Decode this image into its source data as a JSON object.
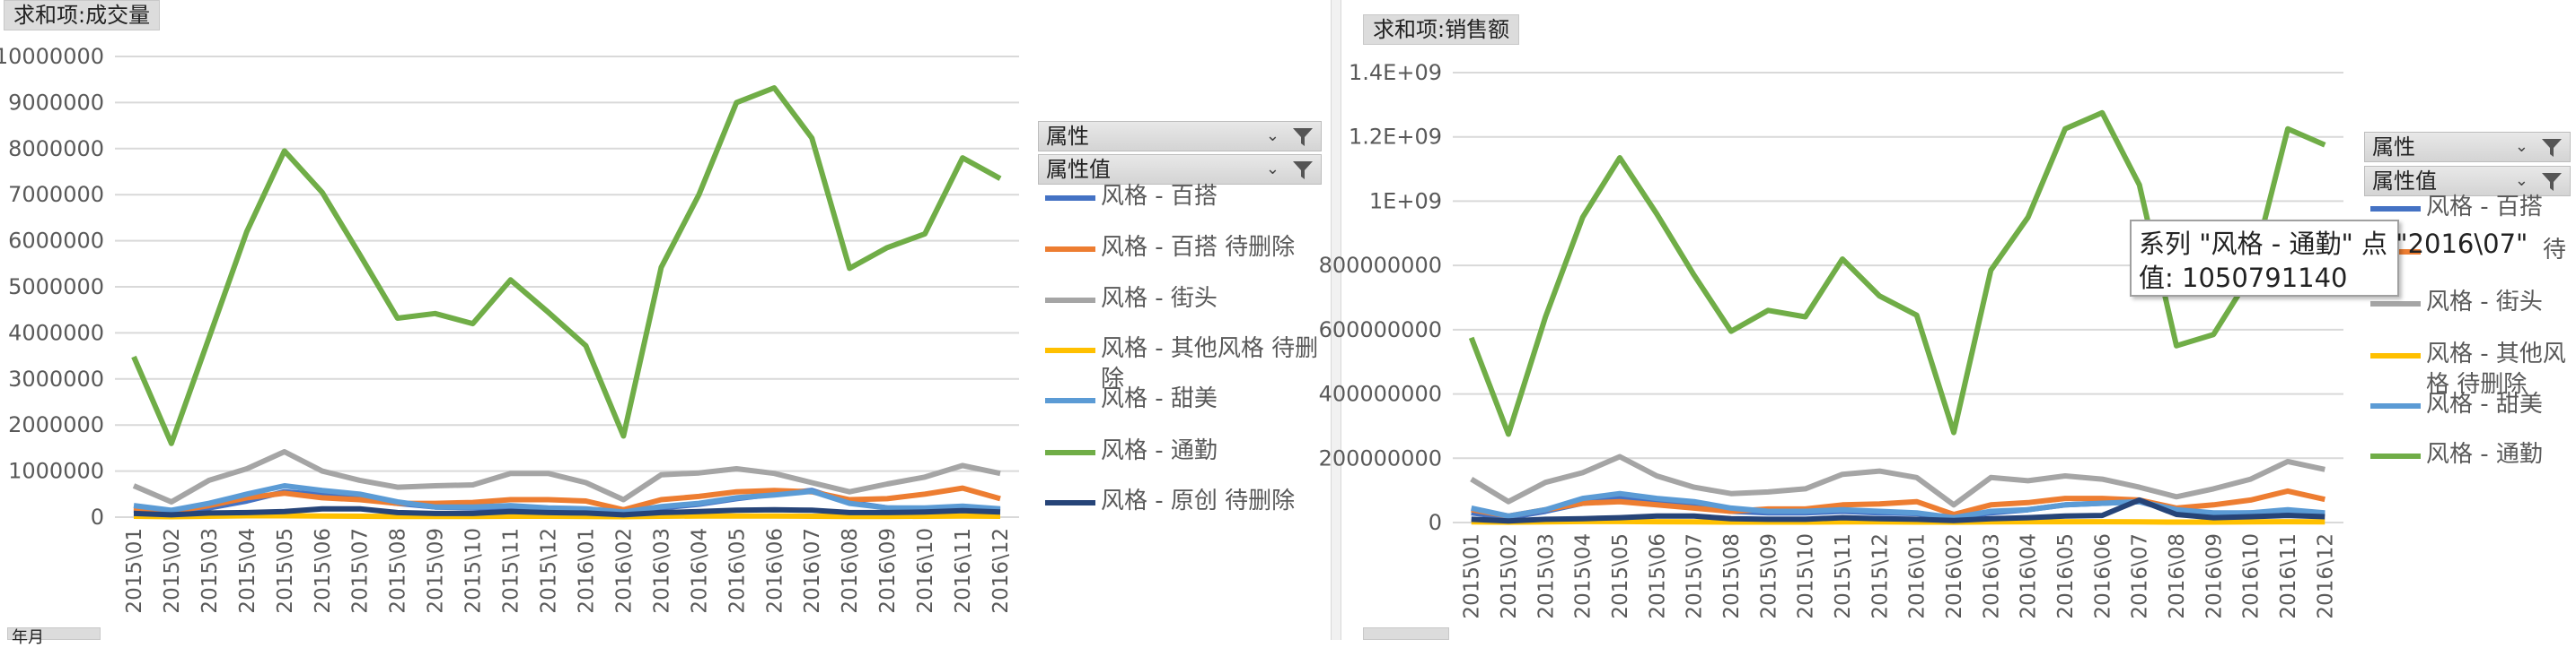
{
  "colors": {
    "百搭": "#4472c4",
    "百搭待删除": "#ed7d31",
    "街头": "#a5a5a5",
    "其他风格待删除": "#ffc000",
    "甜美": "#5b9bd5",
    "通勤": "#70ad47",
    "原创待删除": "#264478"
  },
  "categories": [
    "2015\\01",
    "2015\\02",
    "2015\\03",
    "2015\\04",
    "2015\\05",
    "2015\\06",
    "2015\\07",
    "2015\\08",
    "2015\\09",
    "2015\\10",
    "2015\\11",
    "2015\\12",
    "2016\\01",
    "2016\\02",
    "2016\\03",
    "2016\\04",
    "2016\\05",
    "2016\\06",
    "2016\\07",
    "2016\\08",
    "2016\\09",
    "2016\\10",
    "2016\\11",
    "2016\\12"
  ],
  "left": {
    "field_button": "求和项:成交量",
    "filter1": "属性",
    "filter2": "属性值",
    "legend": [
      "风格 - 百搭",
      "风格 - 百搭 待删除",
      "风格 - 街头",
      "风格 - 其他风格 待删",
      "除",
      "风格 - 甜美",
      "风格 - 通勤",
      "风格 - 原创 待删除"
    ],
    "bottom_tab": "年月"
  },
  "right": {
    "field_button": "求和项:销售额",
    "filter1": "属性",
    "filter2": "属性值",
    "legend": [
      "风格 - 百搭",
      "待",
      "风格 - 街头",
      "风格 - 其他风",
      "格 待删除",
      "风格 - 甜美",
      "风格 - 通勤"
    ],
    "tooltip_line1": "系列 \"风格 - 通勤\" 点 \"2016\\07\"",
    "tooltip_line2": "值: 1050791140"
  },
  "chart_data": [
    {
      "type": "line",
      "title": "",
      "ylim": [
        0,
        10000000
      ],
      "yticks": [
        "0",
        "1000000",
        "2000000",
        "3000000",
        "4000000",
        "5000000",
        "6000000",
        "7000000",
        "8000000",
        "9000000",
        "10000000"
      ],
      "grid": true,
      "legend_position": "right",
      "series": [
        {
          "name": "风格 - 百搭",
          "color_key": "百搭",
          "values": [
            150000,
            80000,
            200000,
            350000,
            550000,
            480000,
            400000,
            300000,
            220000,
            200000,
            200000,
            180000,
            150000,
            90000,
            200000,
            280000,
            400000,
            500000,
            580000,
            320000,
            200000,
            180000,
            200000,
            150000
          ]
        },
        {
          "name": "风格 - 百搭 待删除",
          "color_key": "百搭待删除",
          "values": [
            200000,
            120000,
            250000,
            420000,
            520000,
            420000,
            380000,
            300000,
            300000,
            320000,
            380000,
            380000,
            350000,
            160000,
            380000,
            450000,
            550000,
            580000,
            550000,
            380000,
            400000,
            500000,
            630000,
            400000
          ]
        },
        {
          "name": "风格 - 街头",
          "color_key": "街头",
          "values": [
            680000,
            330000,
            800000,
            1050000,
            1420000,
            1000000,
            800000,
            650000,
            680000,
            700000,
            950000,
            950000,
            750000,
            380000,
            920000,
            960000,
            1050000,
            950000,
            750000,
            550000,
            720000,
            870000,
            1120000,
            950000
          ]
        },
        {
          "name": "风格 - 其他风格 待删除",
          "color_key": "其他风格待删除",
          "values": [
            20000,
            10000,
            20000,
            30000,
            30000,
            25000,
            20000,
            15000,
            15000,
            15000,
            20000,
            20000,
            15000,
            10000,
            20000,
            25000,
            25000,
            25000,
            20000,
            15000,
            15000,
            20000,
            25000,
            20000
          ]
        },
        {
          "name": "风格 - 甜美",
          "color_key": "甜美",
          "values": [
            250000,
            150000,
            300000,
            500000,
            680000,
            580000,
            500000,
            330000,
            220000,
            220000,
            250000,
            200000,
            180000,
            110000,
            230000,
            300000,
            420000,
            480000,
            560000,
            300000,
            200000,
            200000,
            240000,
            180000
          ]
        },
        {
          "name": "风格 - 通勤",
          "color_key": "通勤",
          "values": [
            3480000,
            1600000,
            3900000,
            6200000,
            7950000,
            7050000,
            5700000,
            4320000,
            4420000,
            4200000,
            5150000,
            4450000,
            3720000,
            1760000,
            5420000,
            7000000,
            9000000,
            9320000,
            8230000,
            5400000,
            5850000,
            6150000,
            7800000,
            7350000
          ]
        },
        {
          "name": "风格 - 原创 待删除",
          "color_key": "原创待删除",
          "values": [
            80000,
            50000,
            90000,
            100000,
            120000,
            180000,
            180000,
            100000,
            80000,
            80000,
            120000,
            100000,
            90000,
            50000,
            100000,
            120000,
            150000,
            160000,
            150000,
            100000,
            100000,
            110000,
            140000,
            110000
          ]
        }
      ]
    },
    {
      "type": "line",
      "title": "",
      "ylim": [
        0,
        1400000000
      ],
      "yticks": [
        "0",
        "200000000",
        "400000000",
        "600000000",
        "800000000",
        "1E+09",
        "1.2E+09",
        "1.4E+09"
      ],
      "grid": true,
      "legend_position": "right",
      "series": [
        {
          "name": "风格 - 百搭",
          "color_key": "百搭",
          "values": [
            30000000,
            15000000,
            35000000,
            60000000,
            75000000,
            60000000,
            50000000,
            35000000,
            30000000,
            30000000,
            35000000,
            30000000,
            28000000,
            15000000,
            30000000,
            40000000,
            55000000,
            60000000,
            65000000,
            35000000,
            28000000,
            30000000,
            35000000,
            28000000
          ]
        },
        {
          "name": "风格 - 百搭 待删除",
          "color_key": "百搭待删除",
          "values": [
            40000000,
            20000000,
            40000000,
            60000000,
            65000000,
            55000000,
            45000000,
            35000000,
            42000000,
            42000000,
            55000000,
            58000000,
            65000000,
            25000000,
            55000000,
            62000000,
            75000000,
            75000000,
            70000000,
            45000000,
            55000000,
            70000000,
            98000000,
            72000000
          ]
        },
        {
          "name": "风格 - 街头",
          "color_key": "街头",
          "values": [
            135000000,
            65000000,
            125000000,
            155000000,
            205000000,
            145000000,
            110000000,
            90000000,
            95000000,
            105000000,
            150000000,
            160000000,
            140000000,
            55000000,
            140000000,
            130000000,
            145000000,
            135000000,
            110000000,
            80000000,
            105000000,
            135000000,
            190000000,
            165000000
          ]
        },
        {
          "name": "风格 - 其他风格 待删除",
          "color_key": "其他风格待删除",
          "values": [
            2000000,
            1000000,
            2000000,
            3000000,
            3000000,
            2500000,
            2000000,
            1500000,
            1500000,
            1500000,
            2000000,
            2000000,
            1500000,
            1000000,
            2000000,
            2500000,
            2500000,
            2500000,
            2000000,
            1500000,
            1500000,
            2000000,
            2500000,
            2000000
          ]
        },
        {
          "name": "风格 - 甜美",
          "color_key": "甜美",
          "values": [
            45000000,
            20000000,
            40000000,
            75000000,
            90000000,
            75000000,
            65000000,
            45000000,
            35000000,
            35000000,
            40000000,
            35000000,
            30000000,
            15000000,
            35000000,
            40000000,
            55000000,
            60000000,
            65000000,
            40000000,
            30000000,
            30000000,
            40000000,
            30000000
          ]
        },
        {
          "name": "风格 - 通勤",
          "color_key": "通勤",
          "values": [
            575000000,
            275000000,
            640000000,
            950000000,
            1135000000,
            960000000,
            770000000,
            595000000,
            660000000,
            640000000,
            820000000,
            705000000,
            645000000,
            280000000,
            785000000,
            950000000,
            1225000000,
            1275000000,
            1050791140,
            550000000,
            585000000,
            770000000,
            1225000000,
            1175000000
          ]
        },
        {
          "name": "风格 - 原创 待删除",
          "color_key": "原创待删除",
          "values": [
            10000000,
            5000000,
            10000000,
            12000000,
            15000000,
            20000000,
            20000000,
            12000000,
            10000000,
            10000000,
            15000000,
            12000000,
            10000000,
            6000000,
            12000000,
            15000000,
            20000000,
            22000000,
            70000000,
            25000000,
            15000000,
            18000000,
            22000000,
            18000000
          ]
        }
      ]
    }
  ]
}
